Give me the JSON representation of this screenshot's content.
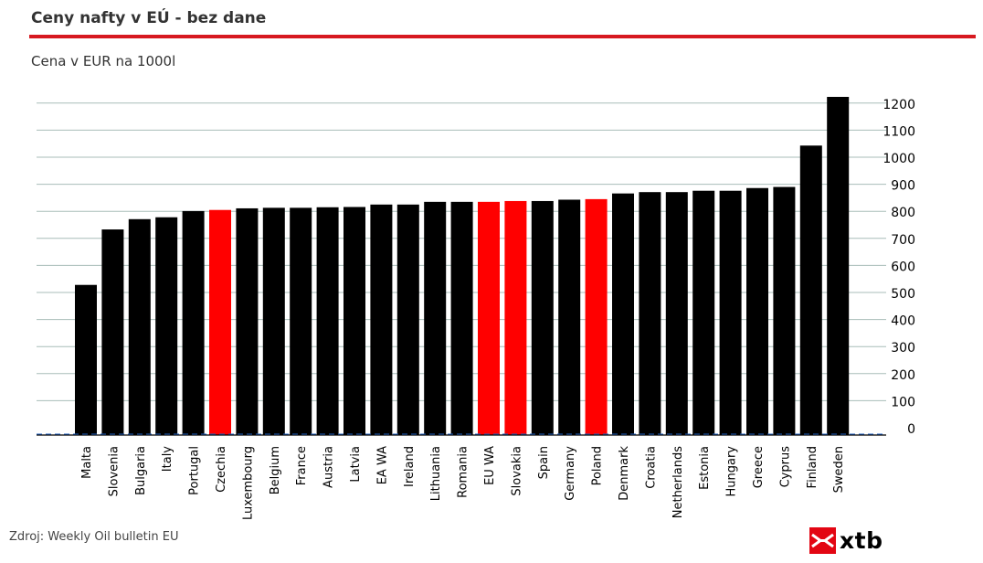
{
  "header": {
    "title": "Ceny nafty v EÚ - bez dane",
    "subtitle": "Cena v EUR na 1000l"
  },
  "footer": {
    "source": "Zdroj: Weekly Oil bulletin EU",
    "logo_text": "xtb"
  },
  "colors": {
    "bar_default": "#000000",
    "bar_highlight": "#ff0000",
    "grid": "#a8bdb8",
    "accent_rule": "#d71920",
    "baseline": "#1f5fbf"
  },
  "chart_data": {
    "type": "bar",
    "categories": [
      "Malta",
      "Slovenia",
      "Bulgaria",
      "Italy",
      "Portugal",
      "Czechia",
      "Luxembourg",
      "Belgium",
      "France",
      "Austria",
      "Latvia",
      "EA WA",
      "Ireland",
      "Lithuania",
      "Romania",
      "EU WA",
      "Slovakia",
      "Spain",
      "Germany",
      "Poland",
      "Denmark",
      "Croatia",
      "Netherlands",
      "Estonia",
      "Hungary",
      "Greece",
      "Cyprus",
      "Finland",
      "Sweden"
    ],
    "values": [
      555,
      760,
      798,
      805,
      828,
      832,
      838,
      840,
      840,
      842,
      843,
      852,
      852,
      862,
      862,
      862,
      865,
      865,
      870,
      872,
      893,
      898,
      898,
      903,
      903,
      913,
      917,
      1070,
      1250
    ],
    "highlighted": [
      "Czechia",
      "EU WA",
      "Slovakia",
      "Poland"
    ],
    "yticks": [
      0,
      100,
      200,
      300,
      400,
      500,
      600,
      700,
      800,
      900,
      1000,
      1100,
      1200
    ],
    "ylim": [
      0,
      1250
    ],
    "y_axis_side": "right",
    "grid": true,
    "legend": "none"
  }
}
